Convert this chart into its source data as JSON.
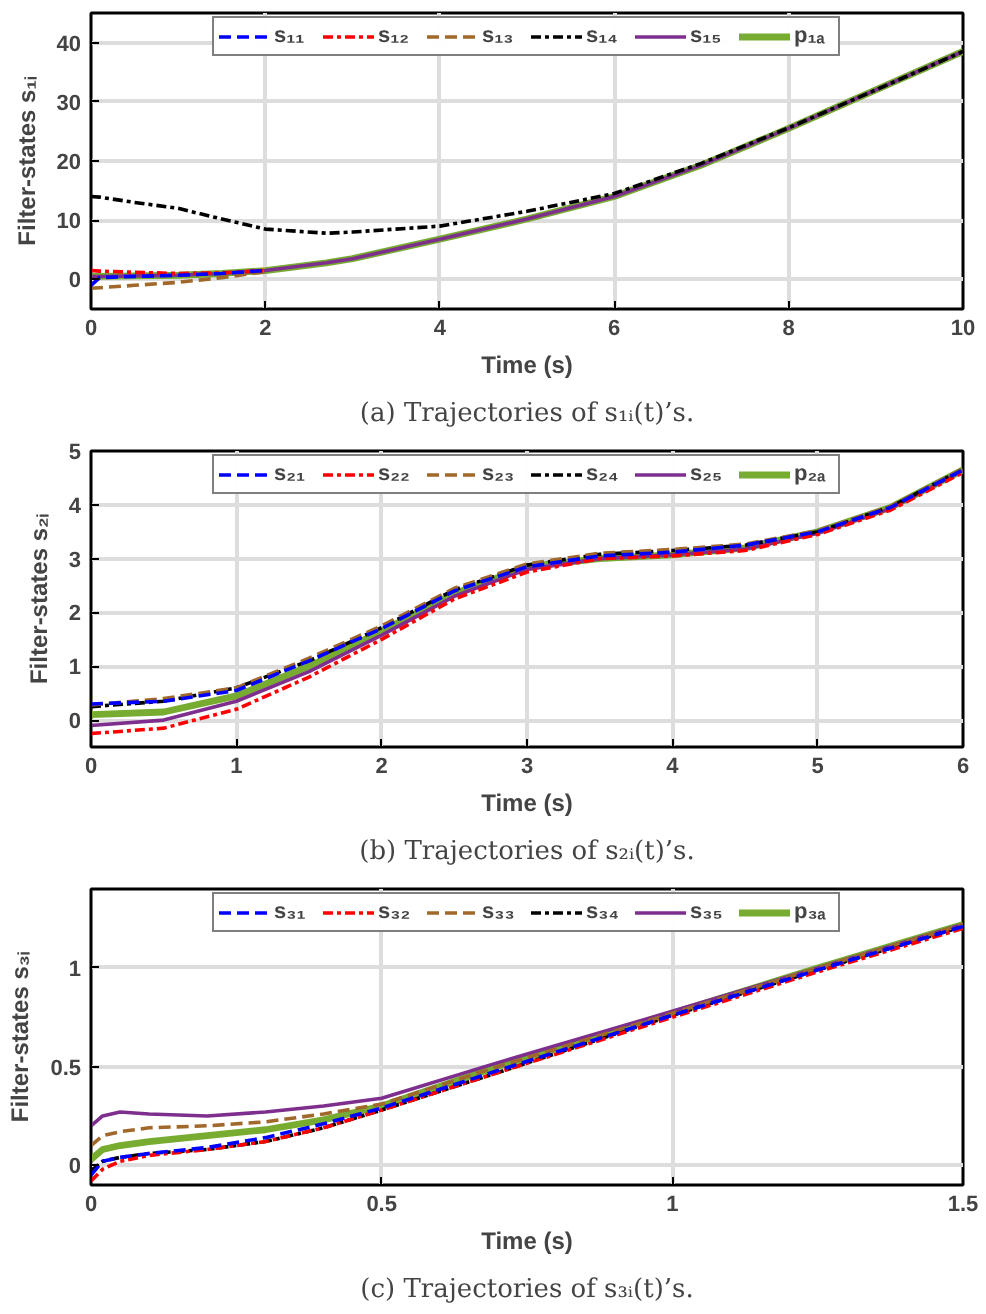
{
  "chart_data": [
    {
      "type": "line",
      "title": "(a) Trajectories of s₁ᵢ(t)’s.",
      "xlabel": "Time (s)",
      "ylabel": "Filter-states s₁ᵢ",
      "xlim": [
        0,
        10
      ],
      "ylim": [
        -5,
        45
      ],
      "xticks": [
        0,
        2,
        4,
        6,
        8,
        10
      ],
      "yticks": [
        0,
        10,
        20,
        30,
        40
      ],
      "grid": true,
      "legend": "top",
      "x": [
        0,
        0.1,
        0.5,
        1,
        1.5,
        2,
        2.7,
        3,
        4,
        5,
        6,
        7,
        8,
        9,
        10
      ],
      "series": [
        {
          "name": "s₁₁",
          "color": "#0000ff",
          "line_style": "dashed",
          "values": [
            -1,
            0.3,
            0.5,
            0.7,
            1.0,
            1.5,
            null,
            null,
            null,
            null,
            null,
            null,
            null,
            null,
            null
          ]
        },
        {
          "name": "s₁₂",
          "color": "#ff0000",
          "line_style": "dashdot",
          "values": [
            1.5,
            1.4,
            1.2,
            1.0,
            1.1,
            1.5,
            null,
            null,
            null,
            null,
            null,
            null,
            null,
            null,
            null
          ]
        },
        {
          "name": "s₁₃",
          "color": "#a0682a",
          "line_style": "dashed",
          "values": [
            -1.5,
            -1.4,
            -1.0,
            -0.5,
            0.3,
            1.3,
            null,
            null,
            null,
            null,
            null,
            null,
            null,
            null,
            null
          ]
        },
        {
          "name": "s₁₄",
          "color": "#000000",
          "line_style": "dashdot",
          "values": [
            14,
            13.9,
            13,
            12,
            10.2,
            8.5,
            7.8,
            8,
            9,
            11.5,
            14.5,
            19.6,
            25.6,
            32,
            38.5
          ]
        },
        {
          "name": "s₁₅",
          "color": "#7e2f8e",
          "line_style": "solid",
          "values": [
            0.5,
            0.5,
            0.6,
            0.7,
            1.0,
            1.5,
            2.8,
            3.5,
            6.8,
            10.2,
            14,
            19.3,
            25.5,
            32,
            38.5
          ]
        },
        {
          "name": "p₁ₐ",
          "color": "#77ac30",
          "line_style": "solid",
          "values": [
            0.5,
            0.5,
            0.6,
            0.7,
            1.0,
            1.5,
            2.8,
            3.5,
            6.8,
            10.2,
            14,
            19.3,
            25.5,
            32,
            38.5
          ]
        }
      ]
    },
    {
      "type": "line",
      "title": "(b) Trajectories of s₂ᵢ(t)’s.",
      "xlabel": "Time (s)",
      "ylabel": "Filter-states s₂ᵢ",
      "xlim": [
        0,
        6
      ],
      "ylim": [
        -0.5,
        5
      ],
      "xticks": [
        0,
        1,
        2,
        3,
        4,
        5,
        6
      ],
      "yticks": [
        0,
        1,
        2,
        3,
        4,
        5
      ],
      "grid": true,
      "legend": "top",
      "x": [
        0,
        0.5,
        1,
        1.5,
        2,
        2.5,
        3,
        3.5,
        4,
        4.5,
        5,
        5.5,
        6
      ],
      "series": [
        {
          "name": "s₂₁",
          "color": "#0000ff",
          "line_style": "dashed",
          "values": [
            0.3,
            0.35,
            0.55,
            1.1,
            1.7,
            2.4,
            2.85,
            3.05,
            3.12,
            3.25,
            3.5,
            3.95,
            4.65
          ]
        },
        {
          "name": "s₂₂",
          "color": "#ff0000",
          "line_style": "dashdot",
          "values": [
            -0.25,
            -0.15,
            0.2,
            0.8,
            1.5,
            2.25,
            2.75,
            3.0,
            3.05,
            3.15,
            3.45,
            3.9,
            4.6
          ]
        },
        {
          "name": "s₂₃",
          "color": "#a0682a",
          "line_style": "dashed",
          "values": [
            0.28,
            0.4,
            0.6,
            1.15,
            1.75,
            2.45,
            2.9,
            3.1,
            3.17,
            3.27,
            3.52,
            3.97,
            4.67
          ]
        },
        {
          "name": "s₂₄",
          "color": "#000000",
          "line_style": "dashdot",
          "values": [
            0.25,
            0.35,
            0.6,
            1.1,
            1.72,
            2.42,
            2.88,
            3.08,
            3.15,
            3.25,
            3.5,
            3.96,
            4.66
          ]
        },
        {
          "name": "s₂₅",
          "color": "#7e2f8e",
          "line_style": "solid",
          "values": [
            -0.1,
            0.0,
            0.35,
            0.9,
            1.58,
            2.3,
            2.8,
            3.0,
            3.07,
            3.18,
            3.47,
            3.93,
            4.64
          ]
        },
        {
          "name": "p₂ₐ",
          "color": "#77ac30",
          "line_style": "solid",
          "values": [
            0.1,
            0.15,
            0.45,
            1.0,
            1.65,
            2.35,
            2.85,
            3.0,
            3.07,
            3.2,
            3.5,
            3.95,
            4.65
          ]
        }
      ]
    },
    {
      "type": "line",
      "title": "(c) Trajectories of s₃ᵢ(t)’s.",
      "xlabel": "Time (s)",
      "ylabel": "Filter-states s₃ᵢ",
      "xlim": [
        0,
        1.5
      ],
      "ylim": [
        -0.1,
        1.4
      ],
      "xticks": [
        0,
        0.5,
        1,
        1.5
      ],
      "yticks": [
        0,
        0.5,
        1
      ],
      "grid": true,
      "legend": "top",
      "x": [
        0,
        0.02,
        0.05,
        0.1,
        0.2,
        0.3,
        0.4,
        0.5,
        0.7,
        1.0,
        1.25,
        1.5
      ],
      "series": [
        {
          "name": "s₃₁",
          "color": "#0000ff",
          "line_style": "dashed",
          "values": [
            -0.05,
            0.02,
            0.04,
            0.06,
            0.09,
            0.14,
            0.21,
            0.29,
            0.48,
            0.76,
            0.99,
            1.21
          ]
        },
        {
          "name": "s₃₂",
          "color": "#ff0000",
          "line_style": "dashdot",
          "values": [
            -0.08,
            -0.02,
            0.02,
            0.05,
            0.08,
            0.12,
            0.19,
            0.28,
            0.47,
            0.75,
            0.98,
            1.2
          ]
        },
        {
          "name": "s₃₃",
          "color": "#a0682a",
          "line_style": "dashed",
          "values": [
            0.1,
            0.15,
            0.17,
            0.19,
            0.2,
            0.22,
            0.26,
            0.31,
            0.5,
            0.77,
            1.0,
            1.22
          ]
        },
        {
          "name": "s₃₄",
          "color": "#000000",
          "line_style": "dashdot",
          "values": [
            -0.03,
            0.02,
            0.04,
            0.06,
            0.08,
            0.12,
            0.19,
            0.28,
            0.47,
            0.76,
            0.99,
            1.21
          ]
        },
        {
          "name": "s₃₅",
          "color": "#7e2f8e",
          "line_style": "solid",
          "values": [
            0.2,
            0.25,
            0.27,
            0.26,
            0.25,
            0.27,
            0.3,
            0.34,
            0.52,
            0.78,
            1.0,
            1.22
          ]
        },
        {
          "name": "p₃ₐ",
          "color": "#77ac30",
          "line_style": "solid",
          "values": [
            0.03,
            0.08,
            0.1,
            0.12,
            0.15,
            0.18,
            0.23,
            0.3,
            0.5,
            0.77,
            1.0,
            1.22
          ]
        }
      ]
    }
  ]
}
